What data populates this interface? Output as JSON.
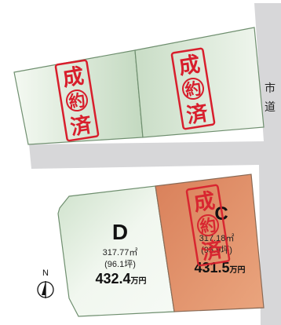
{
  "road": {
    "label_line1": "市",
    "label_line2": "道"
  },
  "sold_stamp": {
    "char1": "成",
    "char2": "約",
    "char3": "済",
    "color": "#d81e2c"
  },
  "lots": {
    "top_left": {
      "status": "sold"
    },
    "top_right": {
      "status": "sold"
    },
    "d": {
      "letter": "D",
      "area": "317.77㎡",
      "tsubo": "(96.1坪)",
      "price_number": "432.4",
      "price_unit": "万円",
      "status": "available"
    },
    "c": {
      "letter": "C",
      "area": "317.18㎡",
      "tsubo": "(95.9坪)",
      "price_number": "431.5",
      "price_unit": "万円",
      "status": "sold"
    }
  },
  "compass": {
    "north_label": "N"
  },
  "colors": {
    "road_gray": "#d7d7d9",
    "lot_green_light": "#eef5ec",
    "lot_green_dark": "#c4dbc1",
    "lot_orange": "#e2946a",
    "lot_border": "#6f8f6f"
  }
}
